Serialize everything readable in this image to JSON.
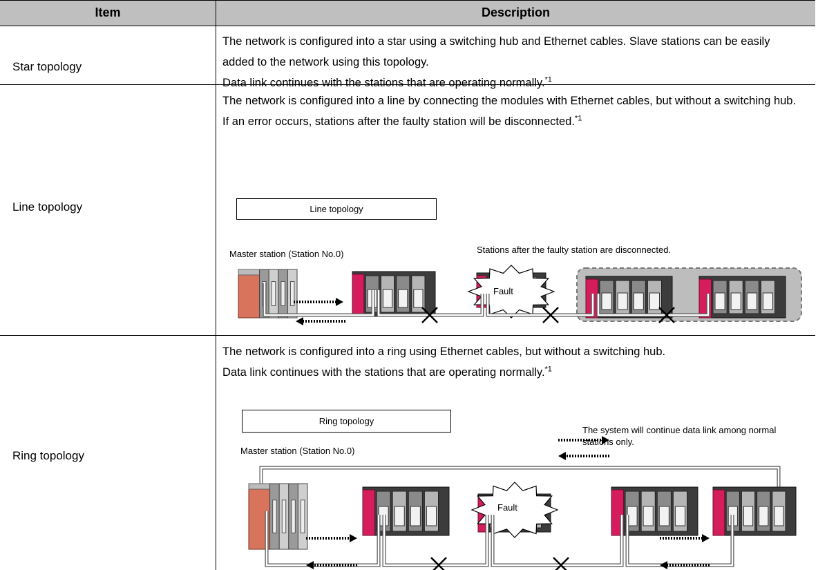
{
  "table": {
    "header": [
      "Item",
      "Description"
    ],
    "rows": [
      {
        "item": "Star topology",
        "paragraphs": [
          "The network is configured into a star using a switching hub and Ethernet cables. Slave stations can be easily added to the network using this topology.",
          "Data link continues with the stations that are operating normally."
        ],
        "note": "*1"
      },
      {
        "item": "Line topology",
        "paragraphs": [
          "The network is configured into a line by connecting the modules with Ethernet cables, but without a switching hub. If an error occurs, stations after the faulty station will be disconnected."
        ],
        "note": "*1",
        "diagram": {
          "title": "Line topology",
          "master_label": "Master station (Station No.0)",
          "caption": "Stations after the faulty station are disconnected.",
          "fault_label": "Fault"
        }
      },
      {
        "item": "Ring topology",
        "paragraphs": [
          "The network is configured into a ring using Ethernet cables, but without a switching hub.",
          "Data link continues with the stations that are operating normally."
        ],
        "note": "*1",
        "diagram": {
          "title": "Ring topology",
          "master_label": "Master station (Station No.0)",
          "caption": "The system will continue data link among normal stations only.",
          "fault_label": "Fault"
        }
      }
    ]
  }
}
